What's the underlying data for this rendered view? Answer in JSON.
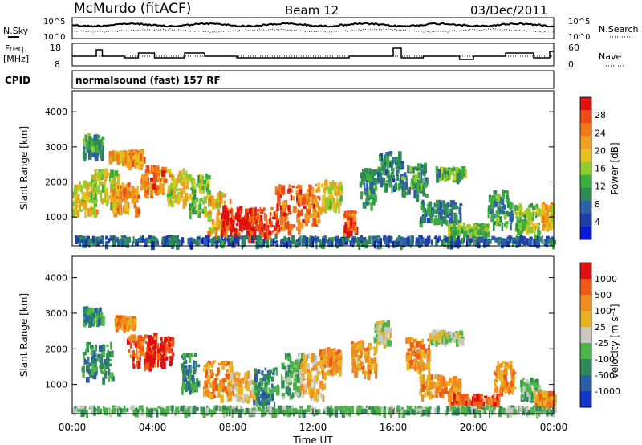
{
  "header": {
    "station": "McMurdo (fitACF)",
    "beam": "Beam 12",
    "date": "03/Dec/2011"
  },
  "noise_panel": {
    "left_label": "N.Sky",
    "right_label": "N.Search",
    "left_ticks": [
      "10^5",
      "10^0"
    ],
    "right_ticks": [
      "10^5",
      "10^0"
    ]
  },
  "freq_panel": {
    "left_label_1": "Freq.",
    "left_label_2": "[MHz]",
    "right_label": "Nave",
    "left_ticks": [
      "18",
      "8"
    ],
    "right_ticks": [
      "60",
      "0"
    ]
  },
  "cpid_panel": {
    "label": "CPID",
    "text": "normalsound (fast) 157 RF"
  },
  "chart_data": [
    {
      "type": "heatmap",
      "quantity": "Power",
      "ylabel": "Slant Range [km]",
      "ylim": [
        180,
        4600
      ],
      "yticks": [
        "1000",
        "2000",
        "3000",
        "4000"
      ],
      "xlabel": "Time UT",
      "xticks": [
        "00:00",
        "04:00",
        "08:00",
        "12:00",
        "16:00",
        "20:00",
        "00:00"
      ],
      "colorbar": {
        "label": "Power [dB]",
        "ticks": [
          "4",
          "8",
          "12",
          "16",
          "20",
          "24",
          "28"
        ],
        "colors": [
          "#0a1ad8",
          "#1e3ea8",
          "#2d5fa6",
          "#2e8b57",
          "#3cae3c",
          "#8fce2a",
          "#e6c21e",
          "#f0a020",
          "#f07818",
          "#ee4a16",
          "#e01010"
        ]
      },
      "blobs": [
        {
          "t": 1.0,
          "r": 3100,
          "dt": 0.5,
          "dr": 300,
          "p": 10
        },
        {
          "t": 2.3,
          "r": 2800,
          "dt": 0.5,
          "dr": 120,
          "p": 20
        },
        {
          "t": 3.1,
          "r": 2750,
          "dt": 0.4,
          "dr": 200,
          "p": 22
        },
        {
          "t": 0.6,
          "r": 1600,
          "dt": 0.6,
          "dr": 450,
          "p": 18
        },
        {
          "t": 1.6,
          "r": 1900,
          "dt": 0.7,
          "dr": 500,
          "p": 16
        },
        {
          "t": 2.6,
          "r": 1600,
          "dt": 0.7,
          "dr": 400,
          "p": 22
        },
        {
          "t": 4.0,
          "r": 2100,
          "dt": 0.6,
          "dr": 380,
          "p": 24
        },
        {
          "t": 5.2,
          "r": 1900,
          "dt": 0.5,
          "dr": 500,
          "p": 18
        },
        {
          "t": 6.3,
          "r": 1700,
          "dt": 0.5,
          "dr": 550,
          "p": 14
        },
        {
          "t": 7.3,
          "r": 1200,
          "dt": 0.6,
          "dr": 600,
          "p": 20
        },
        {
          "t": 8.2,
          "r": 900,
          "dt": 0.8,
          "dr": 450,
          "p": 30
        },
        {
          "t": 9.4,
          "r": 900,
          "dt": 0.8,
          "dr": 400,
          "p": 28
        },
        {
          "t": 10.7,
          "r": 1300,
          "dt": 0.6,
          "dr": 650,
          "p": 26
        },
        {
          "t": 11.7,
          "r": 1400,
          "dt": 0.6,
          "dr": 600,
          "p": 24
        },
        {
          "t": 12.9,
          "r": 1700,
          "dt": 0.5,
          "dr": 400,
          "p": 18
        },
        {
          "t": 13.8,
          "r": 900,
          "dt": 0.3,
          "dr": 300,
          "p": 26
        },
        {
          "t": 14.7,
          "r": 1900,
          "dt": 0.4,
          "dr": 500,
          "p": 10
        },
        {
          "t": 15.8,
          "r": 2400,
          "dt": 0.6,
          "dr": 500,
          "p": 8
        },
        {
          "t": 17.0,
          "r": 2100,
          "dt": 0.6,
          "dr": 450,
          "p": 10
        },
        {
          "t": 18.8,
          "r": 2300,
          "dt": 0.7,
          "dr": 150,
          "p": 12
        },
        {
          "t": 18.3,
          "r": 1200,
          "dt": 1.0,
          "dr": 300,
          "p": 8
        },
        {
          "t": 19.7,
          "r": 700,
          "dt": 1.0,
          "dr": 150,
          "p": 14
        },
        {
          "t": 21.3,
          "r": 1300,
          "dt": 0.6,
          "dr": 500,
          "p": 10
        },
        {
          "t": 22.6,
          "r": 1000,
          "dt": 0.6,
          "dr": 400,
          "p": 14
        },
        {
          "t": 23.6,
          "r": 1100,
          "dt": 0.3,
          "dr": 350,
          "p": 20
        },
        {
          "t": 12.0,
          "r": 400,
          "dt": 12.0,
          "dr": 90,
          "p": 6
        }
      ]
    },
    {
      "type": "heatmap",
      "quantity": "Velocity",
      "ylabel": "Slant Range [km]",
      "ylim": [
        180,
        4600
      ],
      "yticks": [
        "1000",
        "2000",
        "3000",
        "4000"
      ],
      "xlabel": "Time UT",
      "xticks": [
        "00:00",
        "04:00",
        "08:00",
        "12:00",
        "16:00",
        "20:00",
        "00:00"
      ],
      "colorbar": {
        "label": "Velocity [m s⁻¹]",
        "ticks": [
          "1000",
          "500",
          "100",
          "25",
          "-25",
          "-100",
          "-500",
          "-1000"
        ],
        "colors": [
          "#1236c8",
          "#2a5fa8",
          "#2e8a5a",
          "#4db548",
          "#c8c8c0",
          "#e6b420",
          "#f08c1e",
          "#ee5a16",
          "#e01010"
        ]
      },
      "blobs": [
        {
          "t": 1.0,
          "r": 3000,
          "dt": 0.5,
          "dr": 200,
          "v": 2
        },
        {
          "t": 2.6,
          "r": 2800,
          "dt": 0.5,
          "dr": 150,
          "v": 6
        },
        {
          "t": 1.2,
          "r": 1700,
          "dt": 0.8,
          "dr": 500,
          "v": 2
        },
        {
          "t": 3.4,
          "r": 2000,
          "dt": 0.7,
          "dr": 450,
          "v": 7
        },
        {
          "t": 4.3,
          "r": 2000,
          "dt": 0.7,
          "dr": 400,
          "v": 8
        },
        {
          "t": 5.8,
          "r": 1400,
          "dt": 0.4,
          "dr": 500,
          "v": 2
        },
        {
          "t": 7.2,
          "r": 1200,
          "dt": 0.7,
          "dr": 500,
          "v": 6
        },
        {
          "t": 8.4,
          "r": 1000,
          "dt": 0.7,
          "dr": 400,
          "v": 5
        },
        {
          "t": 9.6,
          "r": 1000,
          "dt": 0.6,
          "dr": 500,
          "v": 2
        },
        {
          "t": 10.9,
          "r": 1300,
          "dt": 0.5,
          "dr": 600,
          "v": 3
        },
        {
          "t": 11.9,
          "r": 1300,
          "dt": 0.6,
          "dr": 600,
          "v": 5
        },
        {
          "t": 12.8,
          "r": 1700,
          "dt": 0.5,
          "dr": 350,
          "v": 6
        },
        {
          "t": 14.5,
          "r": 1800,
          "dt": 0.6,
          "dr": 450,
          "v": 6
        },
        {
          "t": 15.4,
          "r": 2500,
          "dt": 0.4,
          "dr": 300,
          "v": 4
        },
        {
          "t": 17.2,
          "r": 1900,
          "dt": 0.6,
          "dr": 450,
          "v": 6
        },
        {
          "t": 18.6,
          "r": 2400,
          "dt": 0.8,
          "dr": 150,
          "v": 4
        },
        {
          "t": 18.3,
          "r": 1000,
          "dt": 1.0,
          "dr": 300,
          "v": 6
        },
        {
          "t": 20.0,
          "r": 600,
          "dt": 1.2,
          "dr": 150,
          "v": 7
        },
        {
          "t": 21.5,
          "r": 1300,
          "dt": 0.5,
          "dr": 400,
          "v": 6
        },
        {
          "t": 22.8,
          "r": 900,
          "dt": 0.5,
          "dr": 300,
          "v": 3
        },
        {
          "t": 23.5,
          "r": 600,
          "dt": 0.5,
          "dr": 250,
          "v": 6
        },
        {
          "t": 12.0,
          "r": 350,
          "dt": 12.0,
          "dr": 70,
          "v": 3
        }
      ]
    }
  ]
}
